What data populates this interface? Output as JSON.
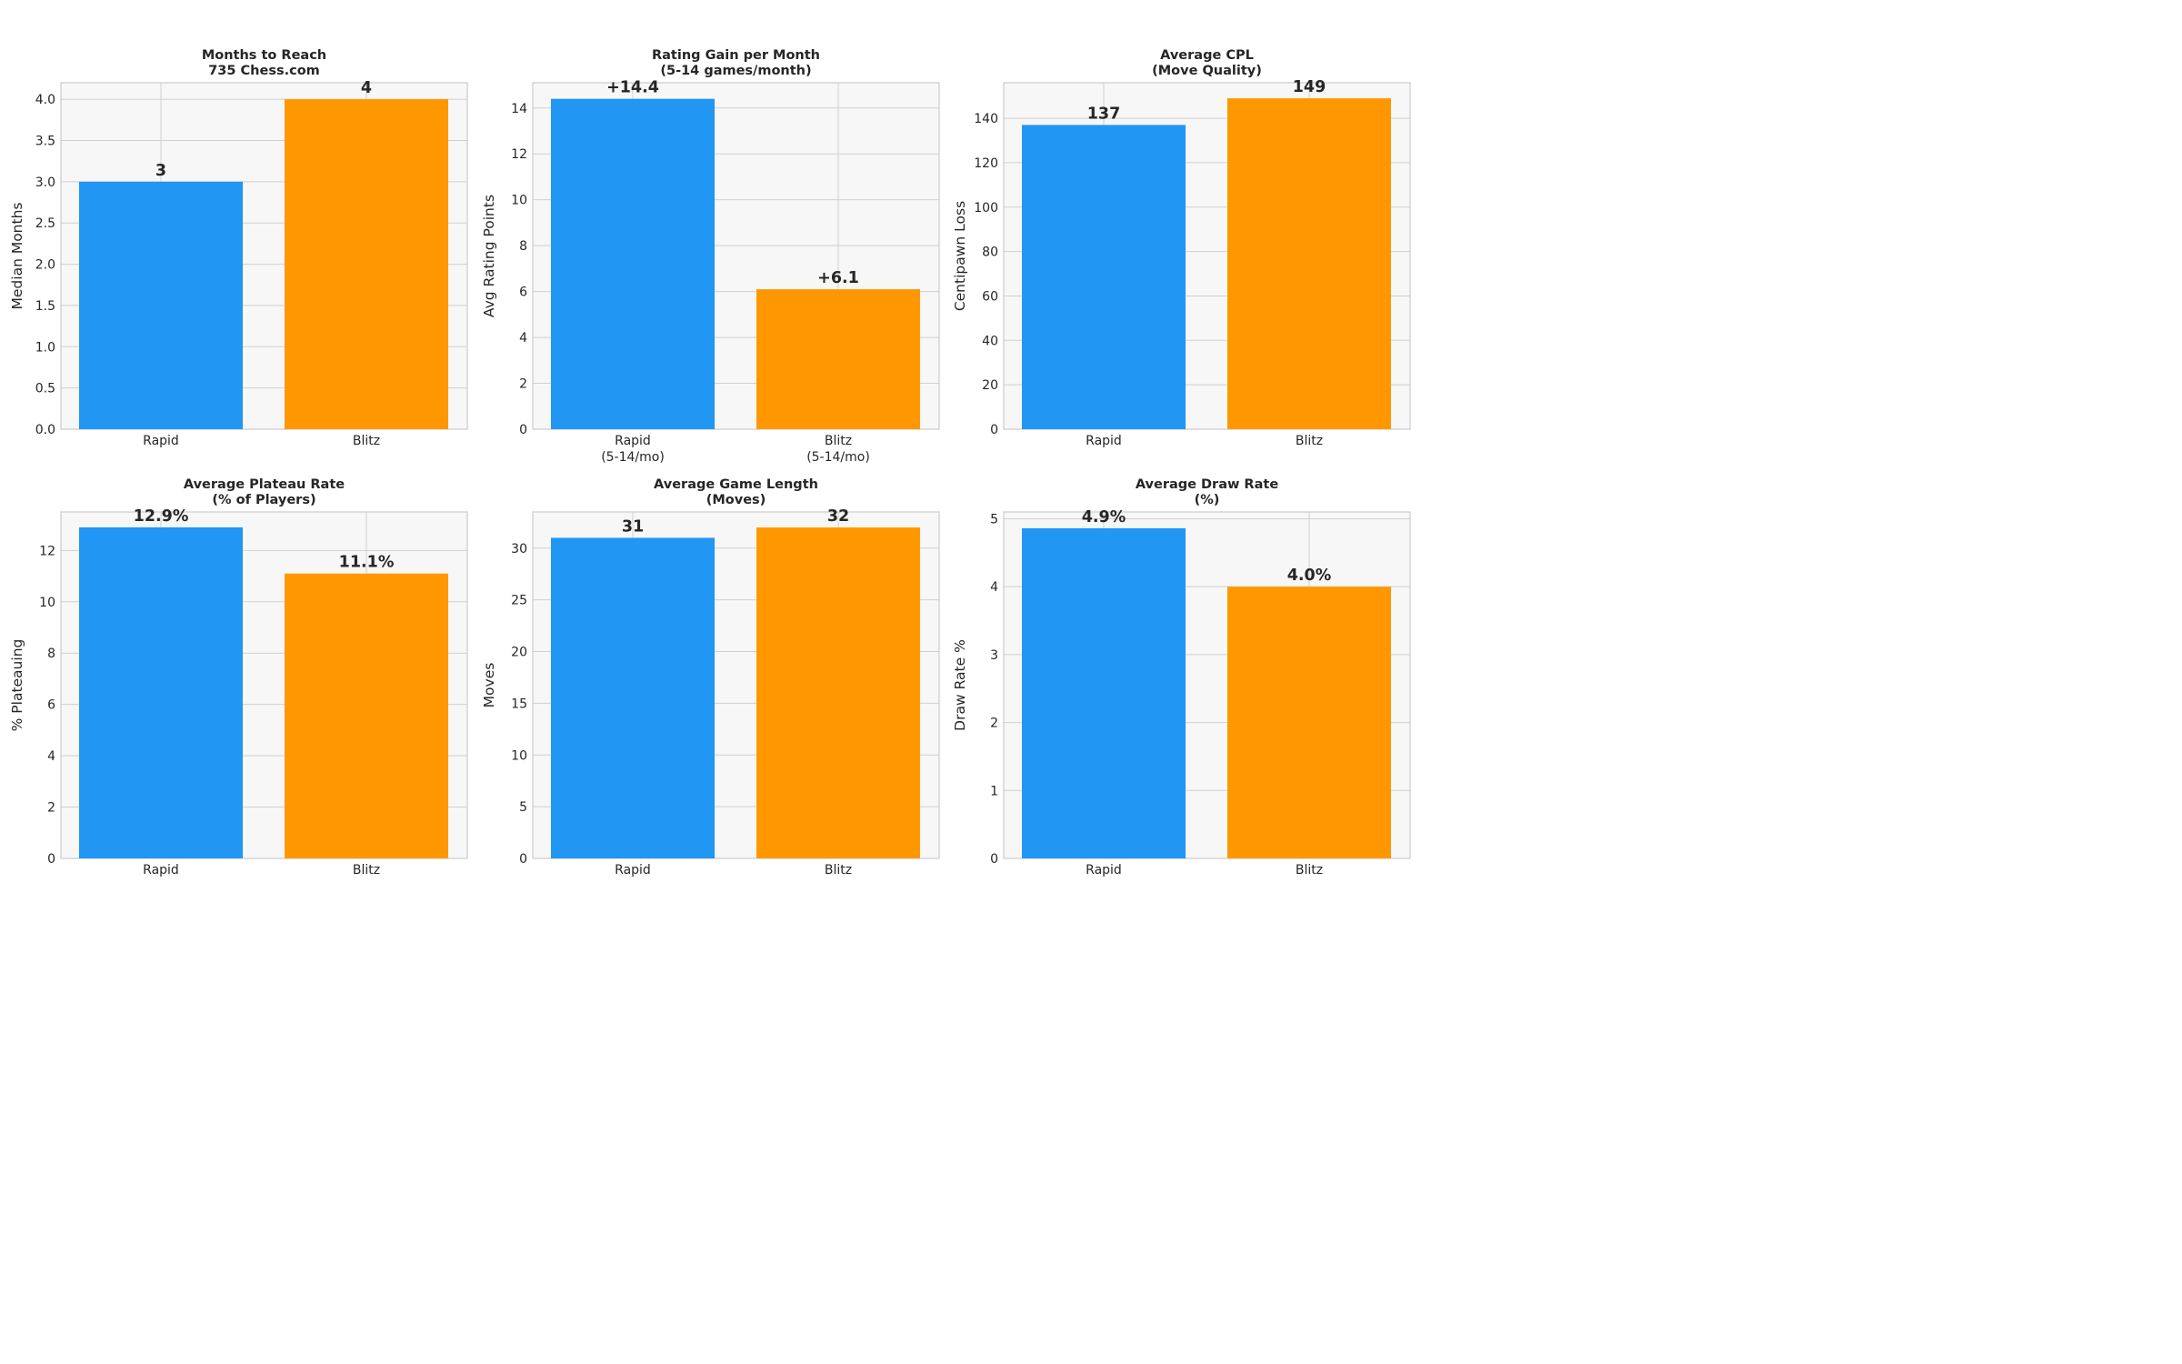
{
  "colors": {
    "rapid": "#2196f3",
    "blitz": "#ff9800"
  },
  "chart_data": [
    {
      "type": "bar",
      "title": [
        "Months to Reach",
        "735 Chess.com"
      ],
      "ylabel": "Median Months",
      "categories": [
        [
          "Rapid"
        ],
        [
          "Blitz"
        ]
      ],
      "values": [
        3,
        4
      ],
      "value_labels": [
        "3",
        "4"
      ],
      "ylim": [
        0,
        4.2
      ],
      "yticks": [
        "0.0",
        "0.5",
        "1.0",
        "1.5",
        "2.0",
        "2.5",
        "3.0",
        "3.5",
        "4.0"
      ],
      "grid": true
    },
    {
      "type": "bar",
      "title": [
        "Rating Gain per Month",
        "(5-14 games/month)"
      ],
      "ylabel": "Avg Rating Points",
      "categories": [
        [
          "Rapid",
          "(5-14/mo)"
        ],
        [
          "Blitz",
          "(5-14/mo)"
        ]
      ],
      "values": [
        14.4,
        6.1
      ],
      "value_labels": [
        "+14.4",
        "+6.1"
      ],
      "ylim": [
        0,
        15.1
      ],
      "yticks": [
        "0",
        "2",
        "4",
        "6",
        "8",
        "10",
        "12",
        "14"
      ],
      "grid": true
    },
    {
      "type": "bar",
      "title": [
        "Average CPL",
        "(Move Quality)"
      ],
      "ylabel": "Centipawn Loss",
      "categories": [
        [
          "Rapid"
        ],
        [
          "Blitz"
        ]
      ],
      "values": [
        137,
        149
      ],
      "value_labels": [
        "137",
        "149"
      ],
      "ylim": [
        0,
        156
      ],
      "yticks": [
        "0",
        "20",
        "40",
        "60",
        "80",
        "100",
        "120",
        "140"
      ],
      "grid": true
    },
    {
      "type": "bar",
      "title": [
        "Average Plateau Rate",
        "(% of Players)"
      ],
      "ylabel": "% Plateauing",
      "categories": [
        [
          "Rapid"
        ],
        [
          "Blitz"
        ]
      ],
      "values": [
        12.9,
        11.1
      ],
      "value_labels": [
        "12.9%",
        "11.1%"
      ],
      "ylim": [
        0,
        13.5
      ],
      "yticks": [
        "0",
        "2",
        "4",
        "6",
        "8",
        "10",
        "12"
      ],
      "grid": true
    },
    {
      "type": "bar",
      "title": [
        "Average Game Length",
        "(Moves)"
      ],
      "ylabel": "Moves",
      "categories": [
        [
          "Rapid"
        ],
        [
          "Blitz"
        ]
      ],
      "values": [
        31,
        32
      ],
      "value_labels": [
        "31",
        "32"
      ],
      "ylim": [
        0,
        33.5
      ],
      "yticks": [
        "0",
        "5",
        "10",
        "15",
        "20",
        "25",
        "30"
      ],
      "grid": true
    },
    {
      "type": "bar",
      "title": [
        "Average Draw Rate",
        "(%)"
      ],
      "ylabel": "Draw Rate %",
      "categories": [
        [
          "Rapid"
        ],
        [
          "Blitz"
        ]
      ],
      "values": [
        4.86,
        4.0
      ],
      "value_labels": [
        "4.9%",
        "4.0%"
      ],
      "ylim": [
        0,
        5.1
      ],
      "yticks": [
        "0",
        "1",
        "2",
        "3",
        "4",
        "5"
      ],
      "grid": true
    }
  ]
}
